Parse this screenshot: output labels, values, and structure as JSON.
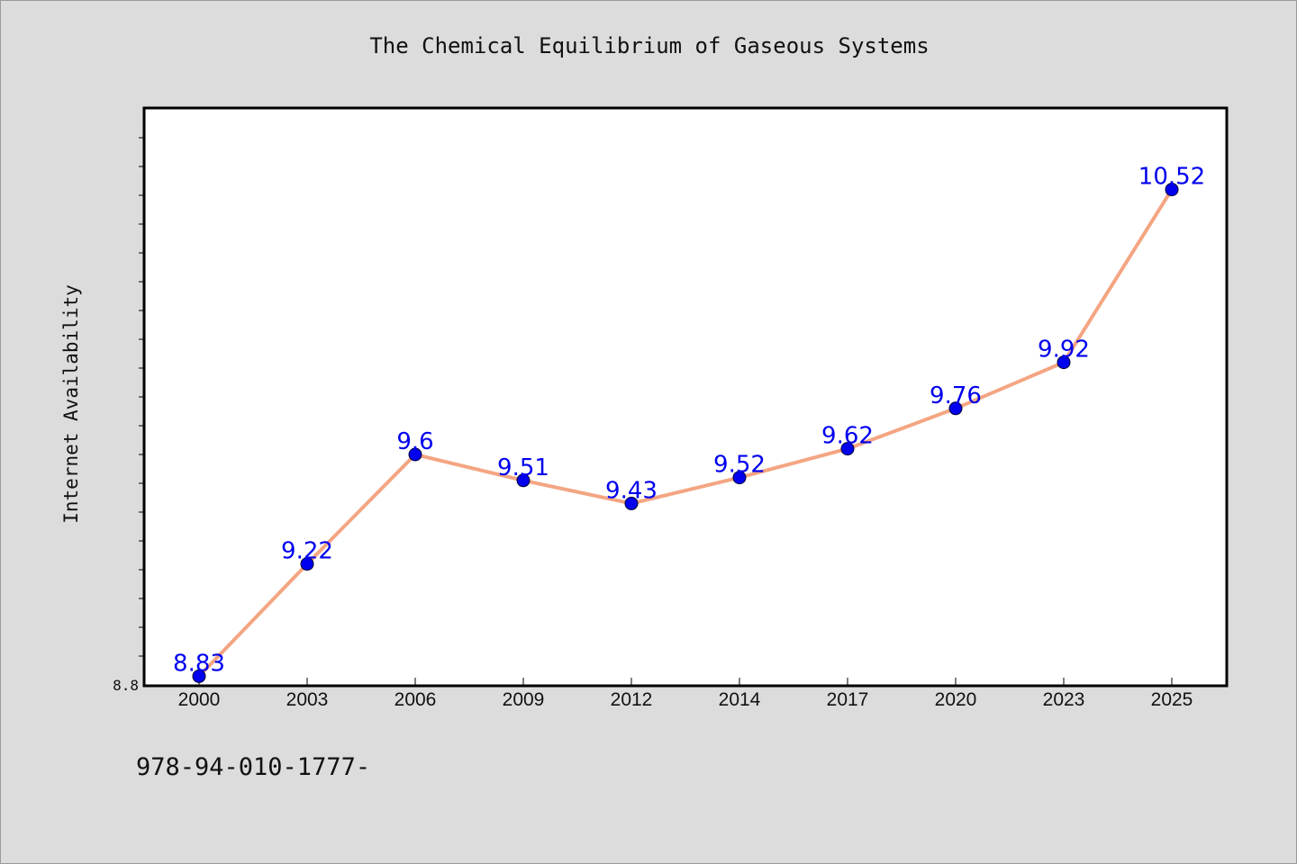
{
  "page": {
    "footer_code": "978-94-010-1777-"
  },
  "colors": {
    "background": "#dcdcdc",
    "plot_background": "#ffffff",
    "line": "#f4a582",
    "marker": "#0000ee",
    "data_label": "#0000ee"
  },
  "chart_data": {
    "type": "line",
    "title": "The Chemical Equilibrium of Gaseous Systems",
    "xlabel": "",
    "ylabel": "Internet Availability",
    "categories": [
      "2000",
      "2003",
      "2006",
      "2009",
      "2012",
      "2014",
      "2017",
      "2020",
      "2023",
      "2025"
    ],
    "series": [
      {
        "values": [
          8.83,
          9.22,
          9.6,
          9.51,
          9.43,
          9.52,
          9.62,
          9.76,
          9.92,
          10.52
        ],
        "labels": [
          "8.83",
          "9.22",
          "9.6",
          "9.51",
          "9.43",
          "9.52",
          "9.62",
          "9.76",
          "9.92",
          "10.52"
        ]
      }
    ],
    "ylim": [
      8.8,
      10.8
    ],
    "y_tick_labels": [
      "8.8"
    ],
    "y_minor_step": 0.1,
    "grid": false,
    "legend": "none"
  }
}
